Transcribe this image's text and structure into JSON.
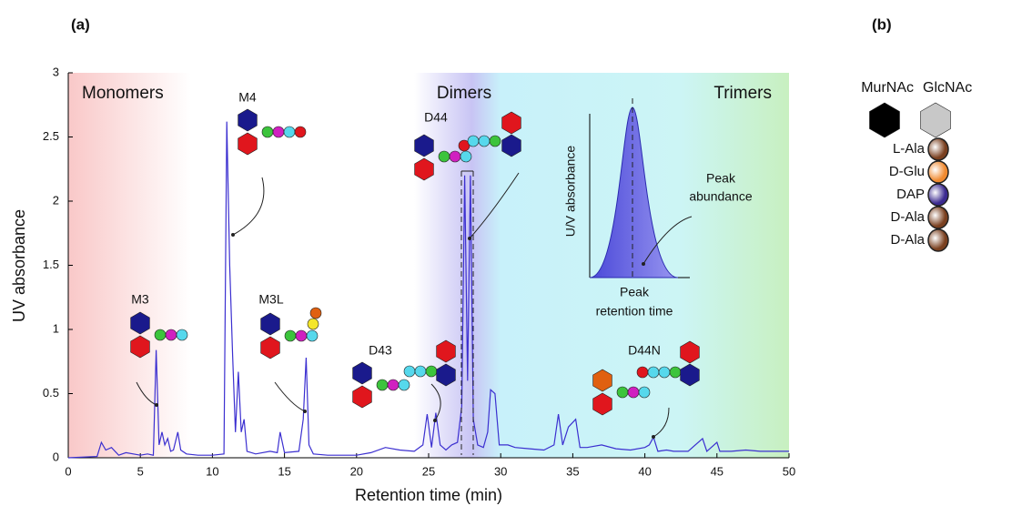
{
  "chart_data": {
    "type": "line",
    "xlabel": "Retention time (min)",
    "ylabel": "UV absorbance",
    "color": "#3b2fd0",
    "x": [
      0,
      2,
      2.3,
      2.6,
      3,
      3.5,
      4,
      5,
      5.5,
      5.9,
      6.1,
      6.3,
      6.5,
      6.7,
      6.9,
      7.1,
      7.3,
      7.6,
      7.8,
      8.2,
      9,
      10,
      10.8,
      11,
      11.2,
      11.4,
      11.6,
      11.8,
      12,
      12.2,
      12.4,
      13,
      14,
      14.5,
      14.7,
      15,
      16,
      16.3,
      16.5,
      16.7,
      17,
      18,
      19,
      20,
      21,
      22,
      23,
      24,
      24.6,
      24.9,
      25.2,
      25.5,
      25.8,
      26.2,
      26.6,
      27,
      27.3,
      27.5,
      27.7,
      27.9,
      28.1,
      28.4,
      28.8,
      29.1,
      29.3,
      29.6,
      29.9,
      30.5,
      31,
      32,
      33,
      33.7,
      34,
      34.3,
      34.7,
      35.2,
      35.5,
      36,
      37,
      38,
      39,
      40,
      40.3,
      40.6,
      40.9,
      41.5,
      42,
      43,
      44,
      44.3,
      45,
      45.2,
      46,
      47,
      48,
      49,
      50
    ],
    "values": [
      0,
      0.01,
      0.12,
      0.06,
      0.08,
      0.02,
      0.04,
      0.02,
      0.03,
      0.02,
      0.84,
      0.1,
      0.2,
      0.1,
      0.15,
      0.05,
      0.06,
      0.2,
      0.06,
      0.03,
      0.02,
      0.02,
      0.03,
      2.62,
      1.5,
      0.8,
      0.2,
      0.67,
      0.2,
      0.3,
      0.05,
      0.03,
      0.05,
      0.04,
      0.2,
      0.04,
      0.05,
      0.3,
      0.78,
      0.1,
      0.03,
      0.02,
      0.02,
      0.02,
      0.04,
      0.08,
      0.06,
      0.05,
      0.1,
      0.34,
      0.08,
      0.35,
      0.1,
      0.06,
      0.1,
      0.12,
      0.4,
      2.2,
      0.6,
      2.2,
      0.3,
      0.1,
      0.08,
      0.2,
      0.53,
      0.5,
      0.1,
      0.1,
      0.08,
      0.07,
      0.06,
      0.1,
      0.34,
      0.1,
      0.24,
      0.3,
      0.08,
      0.08,
      0.1,
      0.07,
      0.06,
      0.08,
      0.1,
      0.16,
      0.05,
      0.06,
      0.05,
      0.05,
      0.15,
      0.05,
      0.12,
      0.05,
      0.05,
      0.06,
      0.05,
      0.05,
      0.05
    ],
    "xlim": [
      0,
      50
    ],
    "xticks": [
      0,
      5,
      10,
      15,
      20,
      25,
      30,
      35,
      40,
      45,
      50
    ],
    "ylim": [
      0,
      3
    ],
    "yticks": [
      0,
      0.5,
      1,
      1.5,
      2,
      2.5,
      3
    ],
    "panel_label": "(a)",
    "regions": [
      "Monomers",
      "Dimers",
      "Trimers"
    ],
    "peak_labels": [
      "M3",
      "M4",
      "M3L",
      "D43",
      "D44",
      "D44N"
    ],
    "inset": {
      "ylabel": "U/V absorbance",
      "peak_abundance": [
        "Peak",
        "abundance"
      ],
      "peak_retention": [
        "Peak",
        "retention time"
      ]
    }
  },
  "panel_b": {
    "label": "(b)",
    "sugars": [
      "MurNAc",
      "GlcNAc"
    ],
    "residues": [
      "L-Ala",
      "D-Glu",
      "DAP",
      "D-Ala",
      "D-Ala"
    ]
  }
}
